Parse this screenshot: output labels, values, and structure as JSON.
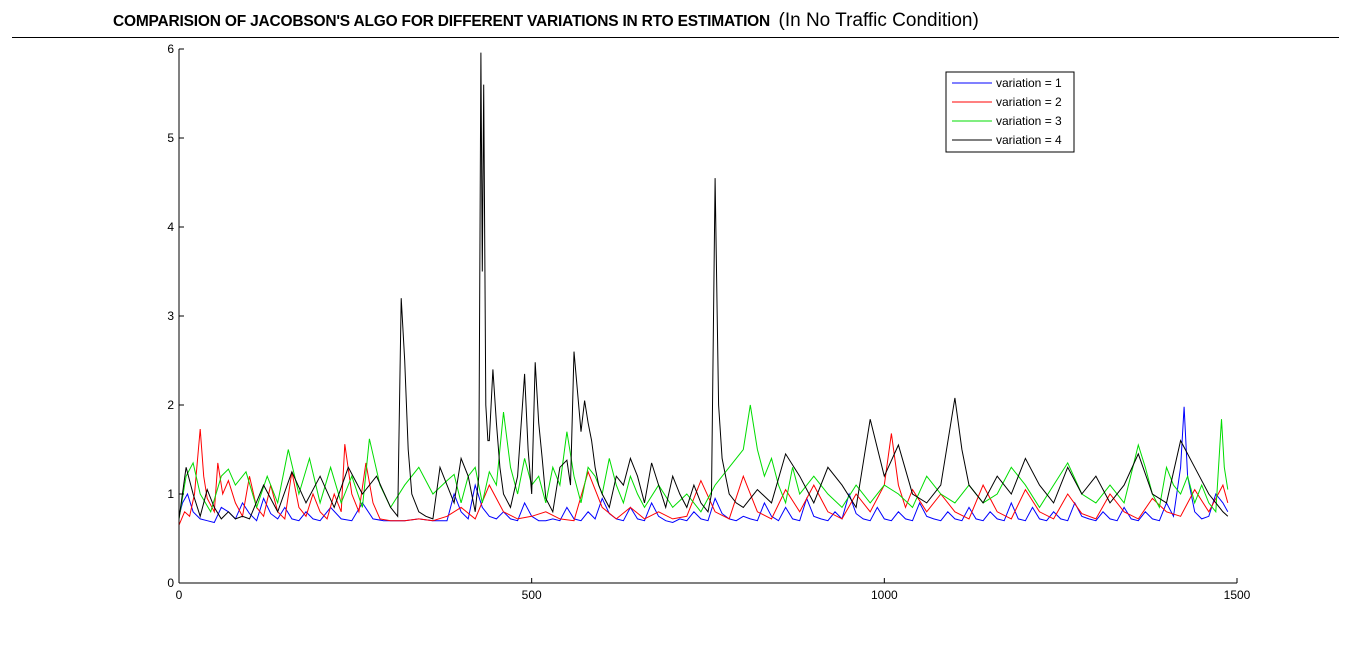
{
  "title": {
    "main": "COMPARISION OF JACOBSON'S ALGO FOR DIFFERENT VARIATIONS IN RTO ESTIMATION",
    "sub": "(In No Traffic Condition)"
  },
  "chart_data": {
    "type": "line",
    "title": "COMPARISION OF JACOBSON'S ALGO FOR DIFFERENT VARIATIONS IN RTO ESTIMATION (In No Traffic Condition)",
    "xlabel": "",
    "ylabel": "",
    "xlim": [
      0,
      1500
    ],
    "ylim": [
      0,
      6
    ],
    "x_ticks": [
      "0",
      "500",
      "1000",
      "1500"
    ],
    "y_ticks": [
      "0",
      "1",
      "2",
      "3",
      "4",
      "5",
      "6"
    ],
    "grid": false,
    "legend_position": "top-right",
    "series": [
      {
        "name": "variation = 1",
        "color": "#0000ff",
        "x": [
          0,
          5,
          12,
          20,
          30,
          40,
          50,
          60,
          70,
          80,
          90,
          100,
          110,
          120,
          130,
          140,
          150,
          160,
          170,
          180,
          190,
          200,
          215,
          230,
          245,
          260,
          275,
          290,
          300,
          320,
          340,
          360,
          380,
          390,
          400,
          410,
          420,
          430,
          440,
          450,
          460,
          470,
          480,
          490,
          500,
          510,
          520,
          530,
          540,
          550,
          560,
          570,
          580,
          590,
          600,
          610,
          620,
          630,
          640,
          650,
          660,
          670,
          680,
          690,
          700,
          710,
          720,
          730,
          740,
          750,
          760,
          770,
          780,
          790,
          800,
          810,
          820,
          830,
          840,
          850,
          860,
          870,
          880,
          890,
          900,
          910,
          920,
          930,
          940,
          950,
          960,
          970,
          980,
          990,
          1000,
          1010,
          1020,
          1030,
          1040,
          1050,
          1060,
          1070,
          1080,
          1090,
          1100,
          1110,
          1120,
          1130,
          1140,
          1150,
          1160,
          1170,
          1180,
          1190,
          1200,
          1210,
          1220,
          1230,
          1240,
          1250,
          1260,
          1270,
          1280,
          1290,
          1300,
          1310,
          1320,
          1330,
          1340,
          1350,
          1360,
          1370,
          1380,
          1390,
          1400,
          1410,
          1420,
          1425,
          1430,
          1440,
          1450,
          1460,
          1470,
          1480,
          1487
        ],
        "values": [
          0.75,
          0.9,
          1.0,
          0.8,
          0.72,
          0.7,
          0.68,
          0.85,
          0.8,
          0.72,
          0.9,
          0.78,
          0.7,
          0.95,
          0.78,
          0.72,
          0.85,
          0.72,
          0.7,
          0.8,
          0.72,
          0.7,
          0.85,
          0.72,
          0.7,
          0.9,
          0.72,
          0.7,
          0.7,
          0.7,
          0.72,
          0.7,
          0.7,
          1.0,
          0.8,
          0.72,
          1.1,
          0.85,
          0.75,
          0.72,
          0.8,
          0.72,
          0.7,
          0.9,
          0.75,
          0.7,
          0.7,
          0.72,
          0.7,
          0.85,
          0.72,
          0.7,
          0.8,
          0.72,
          0.95,
          0.78,
          0.72,
          0.7,
          0.85,
          0.72,
          0.7,
          0.9,
          0.75,
          0.7,
          0.68,
          0.72,
          0.7,
          0.8,
          0.72,
          0.7,
          0.95,
          0.78,
          0.72,
          0.7,
          0.75,
          0.72,
          0.7,
          0.9,
          0.75,
          0.7,
          0.85,
          0.72,
          0.7,
          0.95,
          0.75,
          0.72,
          0.7,
          0.8,
          0.72,
          1.0,
          0.78,
          0.72,
          0.7,
          0.85,
          0.72,
          0.7,
          0.8,
          0.72,
          0.7,
          0.9,
          0.75,
          0.72,
          0.7,
          0.8,
          0.72,
          0.7,
          0.85,
          0.72,
          0.7,
          0.8,
          0.72,
          0.7,
          0.9,
          0.72,
          0.7,
          0.85,
          0.72,
          0.7,
          0.8,
          0.72,
          0.7,
          0.9,
          0.75,
          0.72,
          0.7,
          0.8,
          0.72,
          0.7,
          0.85,
          0.72,
          0.7,
          0.8,
          0.72,
          0.7,
          0.9,
          0.75,
          1.3,
          1.98,
          1.2,
          0.8,
          0.72,
          0.75,
          1.0,
          0.9,
          0.8
        ]
      },
      {
        "name": "variation = 2",
        "color": "#ff0000",
        "x": [
          0,
          8,
          15,
          22,
          30,
          35,
          40,
          50,
          55,
          62,
          70,
          80,
          90,
          100,
          110,
          120,
          130,
          140,
          150,
          160,
          170,
          180,
          190,
          200,
          210,
          220,
          230,
          235,
          245,
          255,
          265,
          275,
          285,
          300,
          320,
          340,
          360,
          380,
          400,
          420,
          440,
          460,
          480,
          500,
          520,
          540,
          560,
          580,
          600,
          620,
          640,
          660,
          680,
          700,
          720,
          740,
          760,
          780,
          800,
          820,
          840,
          860,
          880,
          900,
          920,
          940,
          960,
          980,
          1000,
          1010,
          1020,
          1030,
          1040,
          1060,
          1080,
          1100,
          1120,
          1140,
          1160,
          1180,
          1200,
          1220,
          1240,
          1260,
          1280,
          1300,
          1320,
          1340,
          1360,
          1380,
          1400,
          1420,
          1440,
          1460,
          1480,
          1487
        ],
        "values": [
          0.65,
          0.8,
          0.75,
          1.0,
          1.73,
          1.2,
          0.95,
          0.8,
          1.35,
          1.0,
          1.15,
          0.9,
          0.75,
          1.2,
          0.85,
          0.75,
          1.1,
          0.8,
          0.72,
          1.25,
          0.85,
          0.75,
          1.0,
          0.8,
          0.72,
          1.0,
          0.8,
          1.56,
          1.0,
          0.8,
          1.35,
          0.9,
          0.72,
          0.7,
          0.7,
          0.72,
          0.7,
          0.75,
          0.85,
          0.72,
          1.1,
          0.8,
          0.72,
          0.75,
          0.8,
          0.72,
          0.7,
          1.25,
          0.85,
          0.72,
          0.85,
          0.72,
          0.8,
          0.72,
          0.75,
          1.15,
          0.8,
          0.72,
          1.2,
          0.8,
          0.72,
          1.05,
          0.8,
          1.1,
          0.8,
          0.72,
          1.0,
          0.8,
          1.1,
          1.68,
          1.1,
          0.85,
          1.05,
          0.8,
          1.0,
          0.8,
          0.72,
          1.1,
          0.8,
          0.72,
          1.05,
          0.8,
          0.72,
          1.0,
          0.78,
          0.72,
          1.0,
          0.8,
          0.72,
          0.95,
          0.8,
          0.75,
          1.05,
          0.8,
          1.1,
          0.9
        ]
      },
      {
        "name": "variation = 3",
        "color": "#00dd00",
        "x": [
          0,
          10,
          20,
          30,
          45,
          60,
          70,
          80,
          95,
          110,
          125,
          140,
          155,
          170,
          185,
          200,
          215,
          230,
          245,
          260,
          270,
          285,
          300,
          320,
          340,
          360,
          380,
          390,
          400,
          410,
          420,
          430,
          440,
          450,
          460,
          470,
          480,
          490,
          500,
          510,
          520,
          530,
          540,
          550,
          560,
          570,
          580,
          590,
          600,
          610,
          620,
          630,
          640,
          650,
          660,
          680,
          700,
          720,
          740,
          760,
          780,
          800,
          810,
          820,
          830,
          840,
          850,
          860,
          870,
          880,
          900,
          920,
          940,
          960,
          980,
          1000,
          1020,
          1040,
          1060,
          1080,
          1100,
          1120,
          1140,
          1160,
          1180,
          1200,
          1220,
          1240,
          1260,
          1280,
          1300,
          1320,
          1340,
          1360,
          1370,
          1380,
          1390,
          1400,
          1410,
          1420,
          1430,
          1440,
          1450,
          1460,
          1470,
          1478,
          1482,
          1487
        ],
        "values": [
          0.72,
          1.2,
          1.35,
          1.0,
          0.8,
          1.2,
          1.28,
          1.1,
          1.25,
          0.85,
          1.2,
          0.9,
          1.5,
          1.0,
          1.4,
          0.9,
          1.3,
          0.9,
          1.2,
          0.85,
          1.62,
          1.1,
          0.85,
          1.1,
          1.3,
          1.0,
          1.15,
          1.22,
          0.9,
          1.2,
          1.3,
          0.9,
          1.25,
          1.1,
          1.92,
          1.3,
          1.0,
          1.4,
          1.1,
          1.2,
          0.9,
          1.3,
          1.1,
          1.7,
          1.2,
          0.9,
          1.3,
          1.2,
          1.0,
          1.4,
          1.1,
          0.9,
          1.2,
          1.0,
          0.85,
          1.1,
          0.85,
          1.0,
          0.8,
          1.1,
          1.3,
          1.5,
          2.0,
          1.5,
          1.2,
          1.4,
          1.1,
          0.9,
          1.3,
          1.0,
          1.2,
          1.0,
          0.85,
          1.1,
          0.9,
          1.1,
          1.0,
          0.85,
          1.2,
          1.0,
          0.9,
          1.1,
          0.9,
          1.0,
          1.3,
          1.1,
          0.85,
          1.1,
          1.35,
          1.0,
          0.9,
          1.1,
          0.9,
          1.55,
          1.3,
          1.0,
          0.85,
          1.3,
          1.1,
          1.0,
          1.2,
          0.9,
          1.1,
          0.9,
          0.8,
          1.84,
          1.3,
          1.05
        ]
      },
      {
        "name": "variation = 4",
        "color": "#000000",
        "x": [
          0,
          10,
          20,
          30,
          40,
          50,
          60,
          70,
          80,
          90,
          100,
          120,
          140,
          160,
          180,
          200,
          220,
          240,
          260,
          280,
          300,
          310,
          315,
          320,
          325,
          330,
          340,
          350,
          360,
          370,
          380,
          390,
          400,
          410,
          420,
          425,
          428,
          430,
          432,
          435,
          438,
          440,
          445,
          450,
          455,
          460,
          470,
          480,
          490,
          495,
          500,
          505,
          510,
          515,
          520,
          530,
          540,
          550,
          555,
          560,
          570,
          575,
          580,
          585,
          590,
          595,
          600,
          610,
          620,
          630,
          640,
          650,
          660,
          670,
          680,
          690,
          700,
          710,
          720,
          730,
          740,
          750,
          755,
          760,
          763,
          765,
          770,
          775,
          780,
          790,
          800,
          820,
          840,
          860,
          880,
          900,
          920,
          940,
          960,
          980,
          1000,
          1020,
          1040,
          1060,
          1080,
          1100,
          1110,
          1120,
          1140,
          1160,
          1180,
          1200,
          1220,
          1240,
          1260,
          1280,
          1300,
          1320,
          1340,
          1360,
          1380,
          1400,
          1420,
          1440,
          1460,
          1480,
          1487
        ],
        "values": [
          0.72,
          1.3,
          1.0,
          0.75,
          1.05,
          0.85,
          0.72,
          0.8,
          0.72,
          0.75,
          0.72,
          1.1,
          0.8,
          1.25,
          0.9,
          1.2,
          0.85,
          1.3,
          1.0,
          1.2,
          0.85,
          0.75,
          3.2,
          2.5,
          1.5,
          1.0,
          0.8,
          0.75,
          0.72,
          1.3,
          1.1,
          0.9,
          1.4,
          1.2,
          0.8,
          1.2,
          5.96,
          3.5,
          5.6,
          2.0,
          1.6,
          1.6,
          2.4,
          1.8,
          1.3,
          1.0,
          0.85,
          1.2,
          2.35,
          1.5,
          1.0,
          2.48,
          1.8,
          1.4,
          0.95,
          0.8,
          1.3,
          1.38,
          1.1,
          2.6,
          1.7,
          2.05,
          1.8,
          1.6,
          1.3,
          1.1,
          1.0,
          0.85,
          1.2,
          1.1,
          1.4,
          1.2,
          0.9,
          1.35,
          1.1,
          0.85,
          1.2,
          1.0,
          0.85,
          1.1,
          0.9,
          0.8,
          1.0,
          4.55,
          3.0,
          2.0,
          1.4,
          1.2,
          1.0,
          0.9,
          0.85,
          1.05,
          0.9,
          1.45,
          1.2,
          0.9,
          1.3,
          1.1,
          0.85,
          1.84,
          1.2,
          1.55,
          1.0,
          0.9,
          1.1,
          2.08,
          1.5,
          1.1,
          0.9,
          1.2,
          1.0,
          1.4,
          1.1,
          0.9,
          1.3,
          1.0,
          1.2,
          0.9,
          1.1,
          1.45,
          1.0,
          0.9,
          1.6,
          1.3,
          1.0,
          0.8,
          0.75
        ]
      }
    ]
  }
}
